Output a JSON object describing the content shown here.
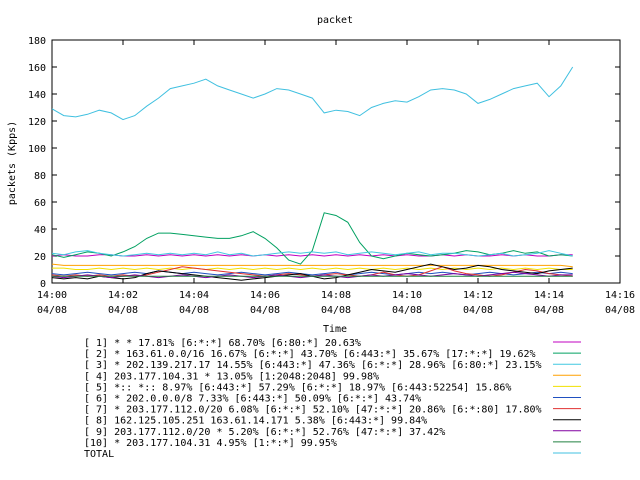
{
  "chart_data": {
    "type": "line",
    "title": "packet",
    "xlabel": "Time",
    "ylabel": "packets (Kpps)",
    "ylim": [
      0,
      180
    ],
    "y_ticks": [
      0,
      20,
      40,
      60,
      80,
      100,
      120,
      140,
      160,
      180
    ],
    "x_range": [
      "14:00",
      "14:16"
    ],
    "x_ticks": [
      {
        "time": "14:00",
        "date": "04/08"
      },
      {
        "time": "14:02",
        "date": "04/08"
      },
      {
        "time": "14:04",
        "date": "04/08"
      },
      {
        "time": "14:06",
        "date": "04/08"
      },
      {
        "time": "14:08",
        "date": "04/08"
      },
      {
        "time": "14:10",
        "date": "04/08"
      },
      {
        "time": "14:12",
        "date": "04/08"
      },
      {
        "time": "14:14",
        "date": "04/08"
      },
      {
        "time": "14:16",
        "date": "04/08"
      }
    ],
    "grid": false,
    "legend_position": "bottom",
    "x": [
      "14:00:00",
      "14:00:20",
      "14:00:40",
      "14:01:00",
      "14:01:20",
      "14:01:40",
      "14:02:00",
      "14:02:20",
      "14:02:40",
      "14:03:00",
      "14:03:20",
      "14:03:40",
      "14:04:00",
      "14:04:20",
      "14:04:40",
      "14:05:00",
      "14:05:20",
      "14:05:40",
      "14:06:00",
      "14:06:20",
      "14:06:40",
      "14:07:00",
      "14:07:20",
      "14:07:40",
      "14:08:00",
      "14:08:20",
      "14:08:40",
      "14:09:00",
      "14:09:20",
      "14:09:40",
      "14:10:00",
      "14:10:20",
      "14:10:40",
      "14:11:00",
      "14:11:20",
      "14:11:40",
      "14:12:00",
      "14:12:20",
      "14:12:40",
      "14:13:00",
      "14:13:20",
      "14:13:40",
      "14:14:00",
      "14:14:20",
      "14:14:40"
    ],
    "series": [
      {
        "name": "[ 1] * * 17.81% [6:*:*] 68.70% [6:80:*] 20.63%",
        "color": "#c000c0",
        "values": [
          20,
          21,
          20,
          20,
          21,
          21,
          20,
          20,
          21,
          20,
          21,
          20,
          21,
          20,
          21,
          20,
          21,
          20,
          21,
          20,
          21,
          20,
          21,
          20,
          21,
          20,
          21,
          20,
          21,
          20,
          21,
          20,
          20,
          21,
          20,
          21,
          20,
          20,
          21,
          20,
          21,
          20,
          20,
          21,
          21
        ]
      },
      {
        "name": "[ 2] * 163.61.0.0/16 16.67% [6:*:*] 43.70% [6:443:*] 35.67% [17:*:*] 19.62%",
        "color": "#00a060",
        "values": [
          21,
          19,
          21,
          23,
          22,
          20,
          23,
          27,
          33,
          37,
          37,
          36,
          35,
          34,
          33,
          33,
          35,
          38,
          33,
          26,
          17,
          14,
          24,
          52,
          50,
          45,
          30,
          20,
          18,
          20,
          22,
          21,
          20,
          21,
          22,
          24,
          23,
          21,
          22,
          24,
          22,
          23,
          20,
          21,
          20
        ]
      },
      {
        "name": "[ 3] * 202.139.217.17 14.55% [6:443:*] 47.36% [6:*:*] 28.96% [6:80:*] 23.15%",
        "color": "#40c8e0",
        "values": [
          22,
          21,
          23,
          24,
          22,
          21,
          20,
          21,
          22,
          21,
          22,
          21,
          22,
          21,
          23,
          21,
          22,
          20,
          21,
          22,
          23,
          22,
          23,
          22,
          23,
          21,
          22,
          23,
          22,
          21,
          22,
          23,
          21,
          22,
          22,
          21,
          20,
          21,
          22,
          20,
          21,
          22,
          24,
          22,
          20
        ]
      },
      {
        "name": "[ 4] 203.177.104.31 * 13.05% [1:2048:2048] 99.98%",
        "color": "#ffa000",
        "values": [
          14,
          13,
          13,
          13,
          13,
          13,
          13,
          13,
          13,
          13,
          13,
          13,
          13,
          13,
          13,
          13,
          13,
          13,
          13,
          13,
          13,
          13,
          13,
          13,
          13,
          13,
          13,
          13,
          13,
          13,
          13,
          13,
          13,
          13,
          13,
          13,
          13,
          13,
          13,
          13,
          13,
          13,
          13,
          13,
          12
        ]
      },
      {
        "name": "[ 5] *:: *:: 8.97% [6:443:*] 57.29% [6:*:*] 18.97% [6:443:52254] 15.86%",
        "color": "#f0e000",
        "values": [
          11,
          11,
          10,
          10,
          11,
          10,
          11,
          10,
          11,
          10,
          11,
          10,
          11,
          10,
          11,
          10,
          11,
          10,
          11,
          10,
          11,
          10,
          11,
          10,
          11,
          10,
          11,
          10,
          11,
          10,
          11,
          10,
          11,
          10,
          11,
          10,
          11,
          10,
          11,
          10,
          11,
          10,
          11,
          10,
          10
        ]
      },
      {
        "name": "[ 6] * 202.0.0.0/8 7.33% [6:443:*] 50.09% [6:*:*] 43.74%",
        "color": "#2050c0",
        "values": [
          7,
          6,
          7,
          8,
          7,
          6,
          7,
          8,
          7,
          9,
          8,
          7,
          8,
          7,
          6,
          7,
          8,
          7,
          6,
          7,
          8,
          7,
          6,
          7,
          8,
          6,
          7,
          8,
          7,
          6,
          7,
          8,
          7,
          8,
          7,
          6,
          7,
          8,
          7,
          6,
          7,
          8,
          7,
          8,
          7
        ]
      },
      {
        "name": "[ 7] * 203.177.112.0/20 6.08% [6:*:*] 52.10% [47:*:*] 20.86% [6:*:80] 17.80%",
        "color": "#e03030",
        "values": [
          6,
          5,
          6,
          5,
          6,
          5,
          6,
          5,
          6,
          8,
          10,
          12,
          11,
          10,
          9,
          8,
          7,
          6,
          5,
          6,
          7,
          6,
          5,
          6,
          7,
          6,
          5,
          6,
          8,
          6,
          5,
          6,
          9,
          12,
          9,
          7,
          6,
          5,
          6,
          8,
          10,
          9,
          7,
          6,
          5
        ]
      },
      {
        "name": "[ 8] 162.125.105.251 163.61.14.171 5.38% [6:443:*] 99.84%",
        "color": "#000000",
        "values": [
          4,
          3,
          4,
          3,
          5,
          4,
          3,
          4,
          7,
          9,
          8,
          7,
          6,
          5,
          4,
          3,
          2,
          3,
          4,
          5,
          6,
          7,
          5,
          3,
          4,
          6,
          8,
          10,
          9,
          8,
          10,
          12,
          14,
          12,
          10,
          11,
          13,
          12,
          10,
          9,
          8,
          7,
          9,
          10,
          11
        ]
      },
      {
        "name": "[ 9] 203.177.112.0/20 * 5.20% [6:*:*] 52.76% [47:*:*] 37.42%",
        "color": "#8000a0",
        "values": [
          5,
          4,
          5,
          6,
          5,
          4,
          5,
          6,
          5,
          4,
          5,
          6,
          5,
          4,
          5,
          6,
          5,
          4,
          5,
          6,
          5,
          4,
          5,
          6,
          5,
          4,
          5,
          6,
          5,
          6,
          7,
          6,
          5,
          6,
          7,
          6,
          5,
          6,
          7,
          8,
          7,
          6,
          5,
          6,
          6
        ]
      },
      {
        "name": "[10] * 203.177.104.31 4.95% [1:*:*] 99.95%",
        "color": "#208040",
        "values": [
          5,
          5,
          5,
          5,
          5,
          5,
          5,
          5,
          5,
          5,
          5,
          5,
          5,
          5,
          5,
          5,
          5,
          5,
          5,
          5,
          5,
          5,
          5,
          5,
          5,
          5,
          5,
          5,
          5,
          5,
          5,
          5,
          5,
          5,
          5,
          5,
          5,
          5,
          5,
          5,
          5,
          5,
          5,
          5,
          5
        ]
      },
      {
        "name": "TOTAL",
        "color": "#40c0e0",
        "values": [
          129,
          124,
          123,
          125,
          128,
          126,
          121,
          124,
          131,
          137,
          144,
          146,
          148,
          151,
          146,
          143,
          140,
          137,
          140,
          144,
          143,
          140,
          137,
          126,
          128,
          127,
          124,
          130,
          133,
          135,
          134,
          138,
          143,
          144,
          143,
          140,
          133,
          136,
          140,
          144,
          146,
          148,
          138,
          146,
          160
        ]
      }
    ]
  }
}
